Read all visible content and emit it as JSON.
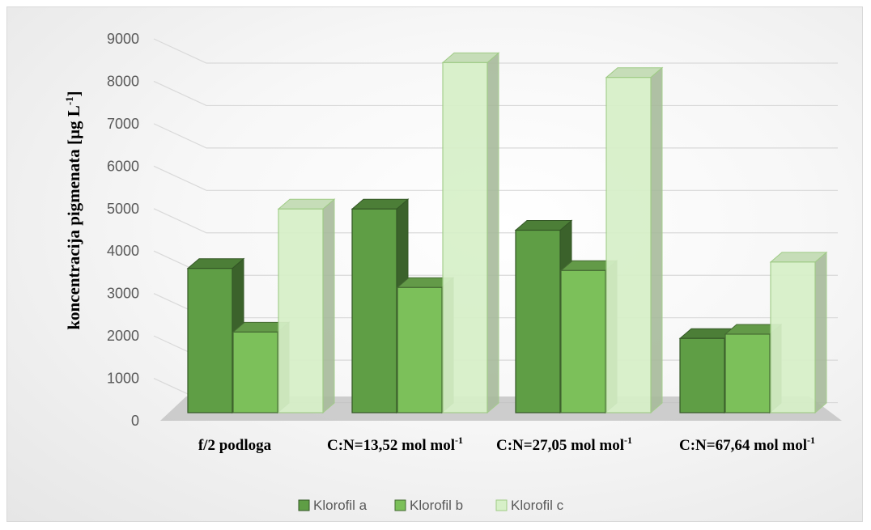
{
  "chart_data": {
    "type": "bar",
    "ylabel": "koncentracija pigmenata [µg L",
    "ylabel_sup": "-1",
    "ylabel_end": "]",
    "ylim": [
      0,
      9000
    ],
    "yticks": [
      "0",
      "1000",
      "2000",
      "3000",
      "4000",
      "5000",
      "6000",
      "7000",
      "8000",
      "9000"
    ],
    "grid": true,
    "legend_position": "bottom",
    "categories": [
      {
        "main": "f/2 podloga",
        "sup": ""
      },
      {
        "main": "C:N=13,52 mol mol",
        "sup": "-1"
      },
      {
        "main": "C:N=27,05 mol mol",
        "sup": "-1"
      },
      {
        "main": "C:N=67,64 mol mol",
        "sup": "-1"
      }
    ],
    "series": [
      {
        "name": "Klorofil a",
        "values": [
          3400,
          4800,
          4300,
          1750
        ],
        "color": "#5f9e45"
      },
      {
        "name": "Klorofil b",
        "values": [
          1900,
          2950,
          3350,
          1850
        ],
        "color": "#7cc05a"
      },
      {
        "name": "Klorofil c",
        "values": [
          4800,
          8250,
          7900,
          3550
        ],
        "color": "#d7f0c8"
      }
    ]
  }
}
